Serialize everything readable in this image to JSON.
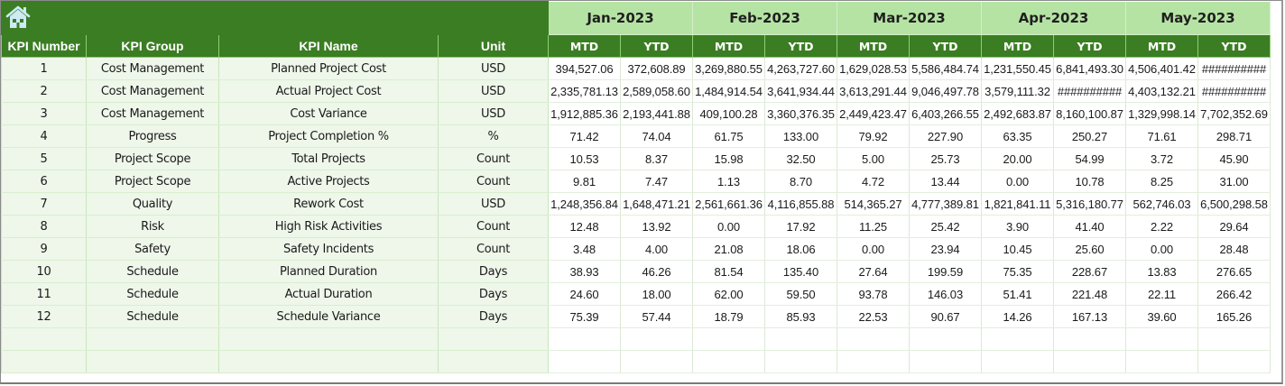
{
  "toolbar": {
    "home_icon": "home-icon"
  },
  "colors": {
    "header_green": "#3b7d23",
    "month_green": "#b5e3a4",
    "label_bg": "#eef7ea",
    "home_icon": "#cdeaf5"
  },
  "months": [
    {
      "label": "Jan-2023"
    },
    {
      "label": "Feb-2023"
    },
    {
      "label": "Mar-2023"
    },
    {
      "label": "Apr-2023"
    },
    {
      "label": "May-2023"
    }
  ],
  "columns": {
    "kpi_number": "KPI Number",
    "kpi_group": "KPI Group",
    "kpi_name": "KPI Name",
    "unit": "Unit",
    "mtd": "MTD",
    "ytd": "YTD"
  },
  "rows": [
    {
      "num": "1",
      "group": "Cost Management",
      "name": "Planned Project Cost",
      "unit": "USD",
      "values": [
        "394,527.06",
        "372,608.89",
        "3,269,880.55",
        "4,263,727.60",
        "1,629,028.53",
        "5,586,484.74",
        "1,231,550.45",
        "6,841,493.30",
        "4,506,401.42",
        "##########"
      ]
    },
    {
      "num": "2",
      "group": "Cost Management",
      "name": "Actual Project Cost",
      "unit": "USD",
      "values": [
        "2,335,781.13",
        "2,589,058.60",
        "1,484,914.54",
        "3,641,934.44",
        "3,613,291.44",
        "9,046,497.78",
        "3,579,111.32",
        "##########",
        "4,403,132.21",
        "##########"
      ]
    },
    {
      "num": "3",
      "group": "Cost Management",
      "name": "Cost Variance",
      "unit": "USD",
      "values": [
        "1,912,885.36",
        "2,193,441.88",
        "409,100.28",
        "3,360,376.35",
        "2,449,423.47",
        "6,403,266.55",
        "2,492,683.87",
        "8,160,100.87",
        "1,329,998.14",
        "7,702,352.69"
      ]
    },
    {
      "num": "4",
      "group": "Progress",
      "name": "Project Completion %",
      "unit": "%",
      "values": [
        "71.42",
        "74.04",
        "61.75",
        "133.00",
        "79.92",
        "227.90",
        "63.35",
        "250.27",
        "71.61",
        "298.71"
      ]
    },
    {
      "num": "5",
      "group": "Project Scope",
      "name": "Total Projects",
      "unit": "Count",
      "values": [
        "10.53",
        "8.37",
        "15.98",
        "32.50",
        "5.00",
        "25.73",
        "20.00",
        "54.99",
        "3.72",
        "45.90"
      ]
    },
    {
      "num": "6",
      "group": "Project Scope",
      "name": "Active Projects",
      "unit": "Count",
      "values": [
        "9.81",
        "7.47",
        "1.13",
        "8.70",
        "4.72",
        "13.44",
        "0.00",
        "10.78",
        "8.25",
        "31.00"
      ]
    },
    {
      "num": "7",
      "group": "Quality",
      "name": "Rework Cost",
      "unit": "USD",
      "values": [
        "1,248,356.84",
        "1,648,471.21",
        "2,561,661.36",
        "4,116,855.88",
        "514,365.27",
        "4,777,389.81",
        "1,821,841.11",
        "5,316,180.77",
        "562,746.03",
        "6,500,298.58"
      ]
    },
    {
      "num": "8",
      "group": "Risk",
      "name": "High Risk Activities",
      "unit": "Count",
      "values": [
        "12.48",
        "13.92",
        "0.00",
        "17.92",
        "11.25",
        "25.42",
        "3.90",
        "41.40",
        "2.22",
        "29.64"
      ]
    },
    {
      "num": "9",
      "group": "Safety",
      "name": "Safety Incidents",
      "unit": "Count",
      "values": [
        "3.48",
        "4.00",
        "21.08",
        "18.06",
        "0.00",
        "23.94",
        "10.45",
        "25.60",
        "0.00",
        "28.48"
      ]
    },
    {
      "num": "10",
      "group": "Schedule",
      "name": "Planned Duration",
      "unit": "Days",
      "values": [
        "38.93",
        "46.26",
        "81.54",
        "135.40",
        "27.64",
        "199.59",
        "75.35",
        "228.67",
        "13.83",
        "276.65"
      ]
    },
    {
      "num": "11",
      "group": "Schedule",
      "name": "Actual Duration",
      "unit": "Days",
      "values": [
        "24.60",
        "18.00",
        "62.00",
        "59.50",
        "93.78",
        "146.03",
        "51.41",
        "221.48",
        "22.11",
        "266.42"
      ]
    },
    {
      "num": "12",
      "group": "Schedule",
      "name": "Schedule Variance",
      "unit": "Days",
      "values": [
        "75.39",
        "57.44",
        "18.79",
        "85.93",
        "22.53",
        "90.67",
        "14.26",
        "167.13",
        "39.60",
        "165.26"
      ]
    },
    {
      "num": "",
      "group": "",
      "name": "",
      "unit": "",
      "values": [
        "",
        "",
        "",
        "",
        "",
        "",
        "",
        "",
        "",
        ""
      ]
    },
    {
      "num": "",
      "group": "",
      "name": "",
      "unit": "",
      "values": [
        "",
        "",
        "",
        "",
        "",
        "",
        "",
        "",
        "",
        ""
      ]
    }
  ]
}
